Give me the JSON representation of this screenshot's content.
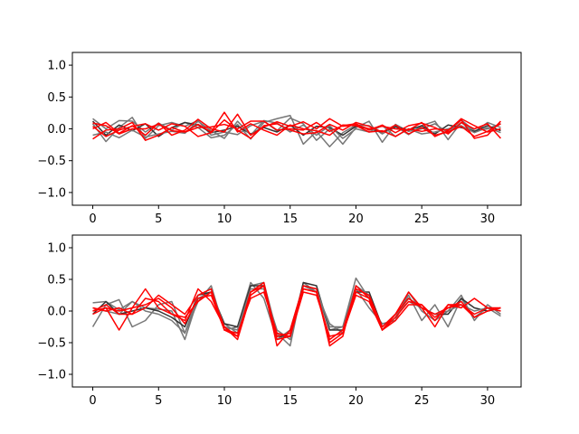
{
  "chart_data": [
    {
      "type": "line",
      "title": "",
      "xlabel": "",
      "ylabel": "",
      "xlim": [
        -1.55,
        32.55
      ],
      "ylim": [
        -1.2,
        1.2
      ],
      "xticks": [
        0,
        5,
        10,
        15,
        20,
        25,
        30
      ],
      "xtick_labels": [
        "0",
        "5",
        "10",
        "15",
        "20",
        "25",
        "30"
      ],
      "yticks": [
        -1.0,
        -0.5,
        0.0,
        0.5,
        1.0
      ],
      "ytick_labels": [
        "−1.0",
        "−0.5",
        "0.0",
        "0.5",
        "1.0"
      ],
      "grid": false,
      "x": [
        0,
        1,
        2,
        3,
        4,
        5,
        6,
        7,
        8,
        9,
        10,
        11,
        12,
        13,
        14,
        15,
        16,
        17,
        18,
        19,
        20,
        21,
        22,
        23,
        24,
        25,
        26,
        27,
        28,
        29,
        30,
        31
      ],
      "series": [
        {
          "color": "#777777",
          "values": [
            0.16,
            0.0,
            0.13,
            0.12,
            -0.05,
            0.09,
            -0.02,
            0.1,
            0.02,
            -0.14,
            -0.1,
            0.07,
            -0.16,
            0.1,
            0.16,
            0.21,
            -0.24,
            -0.04,
            -0.28,
            -0.06,
            0.06,
            0.05,
            -0.08,
            0.04,
            -0.09,
            0.05,
            0.12,
            -0.17,
            0.1,
            -0.05,
            0.1,
            0.02
          ]
        },
        {
          "color": "#777777",
          "values": [
            0.08,
            -0.2,
            0.02,
            0.18,
            -0.15,
            0.05,
            0.1,
            0.04,
            0.13,
            -0.1,
            -0.05,
            -0.09,
            0.05,
            0.12,
            -0.03,
            0.17,
            0.08,
            -0.18,
            0.0,
            -0.24,
            0.02,
            0.12,
            -0.21,
            0.07,
            -0.04,
            0.0,
            0.08,
            -0.06,
            0.14,
            -0.03,
            0.0,
            0.08
          ]
        },
        {
          "color": "#333333",
          "values": [
            0.12,
            -0.1,
            0.06,
            -0.03,
            0.08,
            -0.12,
            0.02,
            0.1,
            0.06,
            -0.06,
            -0.02,
            0.04,
            -0.08,
            0.02,
            -0.05,
            0.06,
            -0.1,
            0.04,
            0.02,
            -0.1,
            0.04,
            0.0,
            -0.05,
            0.03,
            -0.02,
            0.05,
            -0.08,
            0.06,
            0.02,
            -0.04,
            0.05,
            -0.03
          ]
        },
        {
          "color": "#777777",
          "values": [
            -0.1,
            -0.05,
            -0.14,
            -0.02,
            -0.13,
            -0.08,
            -0.04,
            -0.07,
            0.12,
            -0.03,
            -0.15,
            0.12,
            -0.1,
            0.13,
            0.09,
            -0.05,
            0.06,
            -0.1,
            0.05,
            -0.15,
            0.0,
            -0.05,
            0.05,
            -0.12,
            0.0,
            -0.08,
            -0.05,
            0.0,
            0.05,
            -0.06,
            0.02,
            -0.06
          ]
        },
        {
          "color": "#ff0000",
          "values": [
            -0.16,
            -0.02,
            0.0,
            0.1,
            -0.18,
            -0.1,
            0.02,
            -0.05,
            0.07,
            -0.05,
            0.26,
            -0.05,
            0.08,
            -0.02,
            -0.1,
            0.06,
            0.0,
            -0.03,
            -0.1,
            0.06,
            0.05,
            -0.05,
            -0.03,
            -0.12,
            0.0,
            -0.04,
            0.0,
            -0.02,
            0.14,
            -0.15,
            -0.1,
            0.12
          ]
        },
        {
          "color": "#ff0000",
          "values": [
            0.0,
            0.1,
            -0.07,
            0.05,
            -0.1,
            0.09,
            -0.1,
            -0.02,
            0.15,
            0.0,
            -0.05,
            0.23,
            -0.1,
            0.03,
            0.11,
            0.04,
            0.11,
            0.0,
            0.16,
            0.04,
            0.06,
            0.0,
            0.04,
            0.0,
            -0.02,
            0.1,
            -0.12,
            -0.03,
            0.16,
            0.05,
            -0.05,
            0.0
          ]
        },
        {
          "color": "#ff0000",
          "values": [
            0.09,
            0.05,
            -0.08,
            0.0,
            0.0,
            0.07,
            -0.03,
            -0.05,
            0.02,
            0.03,
            0.07,
            0.0,
            0.12,
            0.12,
            -0.02,
            0.0,
            -0.02,
            0.1,
            -0.04,
            0.05,
            0.08,
            -0.02,
            0.06,
            -0.06,
            0.05,
            0.09,
            0.02,
            -0.08,
            0.1,
            0.0,
            0.08,
            -0.15
          ]
        },
        {
          "color": "#ff0000",
          "values": [
            0.04,
            -0.12,
            -0.02,
            0.04,
            0.08,
            -0.02,
            0.08,
            0.04,
            -0.12,
            -0.06,
            0.14,
            -0.02,
            -0.15,
            0.05,
            0.08,
            -0.02,
            -0.08,
            -0.06,
            0.07,
            -0.02,
            0.1,
            0.04,
            -0.05,
            0.06,
            -0.08,
            0.02,
            -0.1,
            -0.05,
            0.04,
            -0.12,
            -0.04,
            0.08
          ]
        }
      ]
    },
    {
      "type": "line",
      "title": "",
      "xlabel": "",
      "ylabel": "",
      "xlim": [
        -1.55,
        32.55
      ],
      "ylim": [
        -1.2,
        1.2
      ],
      "xticks": [
        0,
        5,
        10,
        15,
        20,
        25,
        30
      ],
      "xtick_labels": [
        "0",
        "5",
        "10",
        "15",
        "20",
        "25",
        "30"
      ],
      "yticks": [
        -1.0,
        -0.5,
        0.0,
        0.5,
        1.0
      ],
      "ytick_labels": [
        "−1.0",
        "−0.5",
        "0.0",
        "0.5",
        "1.0"
      ],
      "grid": false,
      "x": [
        0,
        1,
        2,
        3,
        4,
        5,
        6,
        7,
        8,
        9,
        10,
        11,
        12,
        13,
        14,
        15,
        16,
        17,
        18,
        19,
        20,
        21,
        22,
        23,
        24,
        25,
        26,
        27,
        28,
        29,
        30,
        31
      ],
      "series": [
        {
          "color": "#777777",
          "values": [
            0.13,
            0.15,
            0.02,
            0.15,
            0.05,
            0.03,
            0.0,
            -0.45,
            0.2,
            0.3,
            -0.2,
            -0.35,
            0.4,
            0.45,
            -0.35,
            -0.55,
            0.45,
            0.3,
            -0.3,
            -0.25,
            0.52,
            0.2,
            -0.3,
            -0.1,
            0.25,
            -0.15,
            0.1,
            -0.25,
            0.2,
            -0.1,
            0.05,
            -0.08
          ]
        },
        {
          "color": "#777777",
          "values": [
            -0.25,
            0.1,
            0.18,
            -0.25,
            -0.15,
            0.1,
            0.15,
            -0.35,
            0.15,
            0.4,
            -0.3,
            -0.25,
            0.45,
            0.2,
            -0.45,
            -0.3,
            0.4,
            0.3,
            -0.2,
            -0.35,
            0.35,
            0.05,
            -0.2,
            -0.15,
            0.3,
            0.0,
            -0.15,
            0.0,
            0.25,
            -0.15,
            0.1,
            -0.05
          ]
        },
        {
          "color": "#333333",
          "values": [
            -0.05,
            0.15,
            -0.05,
            0.0,
            0.05,
            0.0,
            -0.1,
            -0.25,
            0.25,
            0.3,
            -0.2,
            -0.25,
            0.4,
            0.4,
            -0.4,
            -0.4,
            0.45,
            0.4,
            -0.3,
            -0.3,
            0.3,
            0.3,
            -0.25,
            -0.05,
            0.2,
            0.05,
            -0.05,
            -0.05,
            0.2,
            0.05,
            0.0,
            0.05
          ]
        },
        {
          "color": "#777777",
          "values": [
            0.05,
            0.0,
            -0.05,
            0.15,
            0.0,
            -0.05,
            -0.15,
            -0.35,
            0.25,
            0.35,
            -0.25,
            -0.3,
            0.35,
            0.35,
            -0.3,
            -0.45,
            0.4,
            0.35,
            -0.25,
            -0.25,
            0.4,
            0.25,
            -0.3,
            -0.05,
            0.15,
            0.05,
            -0.05,
            0.0,
            0.1,
            0.0,
            0.05,
            0.0
          ]
        },
        {
          "color": "#ff0000",
          "values": [
            0.0,
            0.05,
            -0.3,
            0.05,
            0.35,
            0.05,
            -0.05,
            -0.15,
            0.35,
            0.15,
            -0.25,
            -0.45,
            0.25,
            0.4,
            -0.55,
            -0.3,
            0.4,
            0.35,
            -0.55,
            -0.4,
            0.4,
            0.2,
            -0.3,
            -0.05,
            0.3,
            0.05,
            -0.25,
            0.1,
            0.05,
            0.2,
            0.05,
            0.0
          ]
        },
        {
          "color": "#ff0000",
          "values": [
            0.0,
            0.1,
            -0.05,
            -0.05,
            0.2,
            0.15,
            -0.05,
            -0.1,
            0.15,
            0.3,
            -0.25,
            -0.4,
            0.3,
            0.4,
            -0.4,
            -0.35,
            0.35,
            0.3,
            -0.45,
            -0.3,
            0.35,
            0.25,
            -0.25,
            -0.05,
            0.2,
            0.05,
            -0.05,
            0.05,
            0.15,
            -0.1,
            0.0,
            0.05
          ]
        },
        {
          "color": "#ff0000",
          "values": [
            -0.05,
            0.05,
            0.0,
            0.05,
            0.1,
            0.2,
            0.05,
            -0.2,
            0.2,
            0.25,
            -0.3,
            -0.4,
            0.3,
            0.45,
            -0.45,
            -0.4,
            0.35,
            0.3,
            -0.5,
            -0.35,
            0.3,
            0.2,
            -0.3,
            -0.1,
            0.15,
            0.1,
            -0.1,
            0.05,
            0.1,
            -0.05,
            0.05,
            0.05
          ]
        },
        {
          "color": "#ff0000",
          "values": [
            0.05,
            0.0,
            0.05,
            -0.05,
            0.05,
            0.25,
            0.1,
            -0.05,
            0.25,
            0.35,
            -0.3,
            -0.35,
            0.2,
            0.3,
            -0.35,
            -0.4,
            0.3,
            0.25,
            -0.4,
            -0.35,
            0.25,
            0.15,
            -0.3,
            -0.15,
            0.1,
            0.1,
            -0.15,
            0.1,
            0.1,
            -0.1,
            0.0,
            0.05
          ]
        }
      ]
    }
  ]
}
